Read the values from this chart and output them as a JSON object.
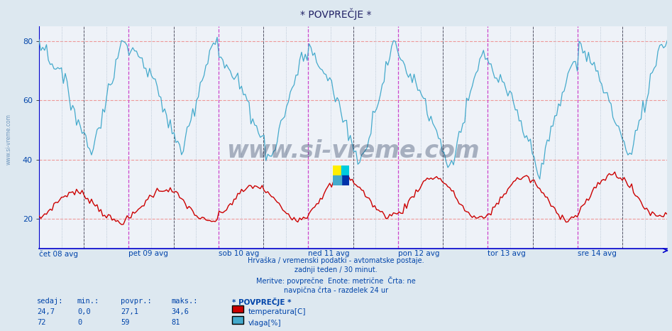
{
  "title": "* POVPREČJE *",
  "bg_color": "#dde8f0",
  "plot_bg_color": "#eef2f8",
  "line_color_temp": "#cc0000",
  "line_color_hum": "#44aacc",
  "vline_color_magenta": "#cc44cc",
  "vline_color_black": "#555566",
  "vline_color_dot": "#aabbcc",
  "hline_color": "#ee9999",
  "ylim_min": 10,
  "ylim_max": 85,
  "yticks": [
    20,
    40,
    60,
    80
  ],
  "n_points": 336,
  "days": [
    "čet 08 avg",
    "pet 09 avg",
    "sob 10 avg",
    "ned 11 avg",
    "pon 12 avg",
    "tor 13 avg",
    "sre 14 avg"
  ],
  "footer_text1": "Hrvaška / vremenski podatki - avtomatske postaje.",
  "footer_text2": "zadnji teden / 30 minut.",
  "footer_text3": "Meritve: povprečne  Enote: metrične  Črta: ne",
  "footer_text4": "navpična črta - razdelek 24 ur",
  "legend_title": "* POVPREČJE *",
  "legend_items": [
    "temperatura[C]",
    "vlaga[%]"
  ],
  "stats_labels": [
    "sedaj:",
    "min.:",
    "povpr.:",
    "maks.:"
  ],
  "stats_temp": [
    "24,7",
    "0,0",
    "27,1",
    "34,6"
  ],
  "stats_hum": [
    "72",
    "0",
    "59",
    "81"
  ],
  "watermark": "www.si-vreme.com",
  "watermark_color": "#223355",
  "watermark_alpha": 0.35,
  "text_color": "#0044aa",
  "spine_color": "#0000cc"
}
